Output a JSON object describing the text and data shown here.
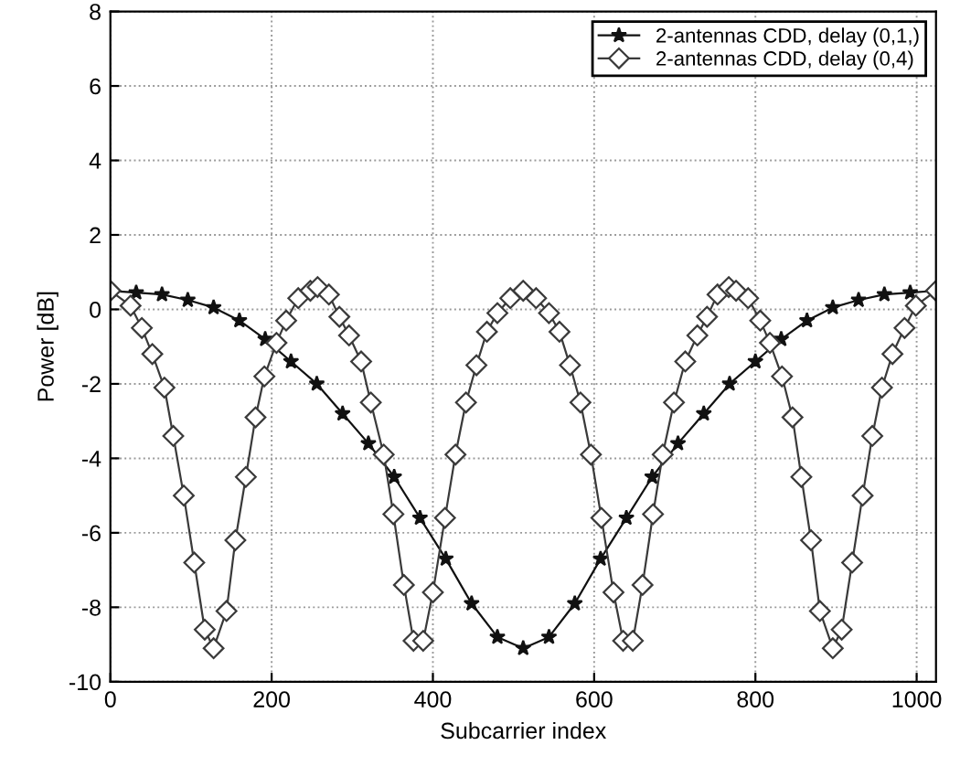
{
  "chart_data": {
    "type": "line",
    "xlabel": "Subcarrier index",
    "ylabel": "Power [dB]",
    "xlim": [
      0,
      1024
    ],
    "xticks": [
      0,
      200,
      400,
      600,
      800,
      1000
    ],
    "ylim": [
      -10,
      8
    ],
    "yticks": [
      -10,
      -8,
      -6,
      -4,
      -2,
      0,
      2,
      4,
      6,
      8
    ],
    "grid": true,
    "legend": "top right",
    "series": [
      {
        "name": "2-antennas CDD, delay (0,1,)",
        "color": "#111111",
        "marker": "star",
        "x": [
          0,
          32,
          64,
          96,
          128,
          160,
          192,
          224,
          256,
          288,
          320,
          352,
          384,
          416,
          448,
          480,
          512,
          544,
          576,
          608,
          640,
          672,
          704,
          736,
          768,
          800,
          832,
          864,
          896,
          928,
          960,
          992,
          1024
        ],
        "values": [
          0.5,
          0.45,
          0.4,
          0.25,
          0.05,
          -0.3,
          -0.8,
          -1.4,
          -2.0,
          -2.8,
          -3.6,
          -4.5,
          -5.6,
          -6.7,
          -7.9,
          -8.8,
          -9.1,
          -8.8,
          -7.9,
          -6.7,
          -5.6,
          -4.5,
          -3.6,
          -2.8,
          -2.0,
          -1.4,
          -0.8,
          -0.3,
          0.05,
          0.25,
          0.4,
          0.45,
          0.5
        ]
      },
      {
        "name": "2-antennas CDD, delay (0,4)",
        "color": "#3a3a3a",
        "marker": "diamond",
        "x": [
          0,
          25,
          39,
          52,
          67,
          78,
          91,
          104,
          117,
          128,
          144,
          155,
          168,
          180,
          191,
          206,
          218,
          233,
          248,
          257,
          271,
          284,
          296,
          311,
          323,
          339,
          351,
          364,
          376,
          388,
          400,
          415,
          428,
          441,
          454,
          467,
          480,
          496,
          512,
          528,
          544,
          557,
          570,
          583,
          596,
          609,
          624,
          636,
          648,
          660,
          673,
          685,
          699,
          713,
          728,
          740,
          753,
          767,
          776,
          791,
          806,
          818,
          833,
          846,
          857,
          869,
          880,
          896,
          907,
          920,
          933,
          945,
          957,
          970,
          985,
          999,
          1024
        ],
        "values": [
          0.5,
          0.1,
          -0.5,
          -1.2,
          -2.1,
          -3.4,
          -5.0,
          -6.8,
          -8.6,
          -9.1,
          -8.1,
          -6.2,
          -4.5,
          -2.9,
          -1.8,
          -0.9,
          -0.3,
          0.3,
          0.5,
          0.6,
          0.4,
          -0.2,
          -0.7,
          -1.4,
          -2.5,
          -3.9,
          -5.5,
          -7.4,
          -8.9,
          -8.9,
          -7.6,
          -5.6,
          -3.9,
          -2.5,
          -1.5,
          -0.6,
          -0.1,
          0.3,
          0.5,
          0.3,
          -0.1,
          -0.6,
          -1.5,
          -2.5,
          -3.9,
          -5.6,
          -7.6,
          -8.9,
          -8.9,
          -7.4,
          -5.5,
          -3.9,
          -2.5,
          -1.4,
          -0.7,
          -0.2,
          0.4,
          0.6,
          0.5,
          0.3,
          -0.3,
          -0.9,
          -1.8,
          -2.9,
          -4.5,
          -6.2,
          -8.1,
          -9.1,
          -8.6,
          -6.8,
          -5.0,
          -3.4,
          -2.1,
          -1.2,
          -0.5,
          0.1,
          0.5
        ]
      }
    ]
  }
}
